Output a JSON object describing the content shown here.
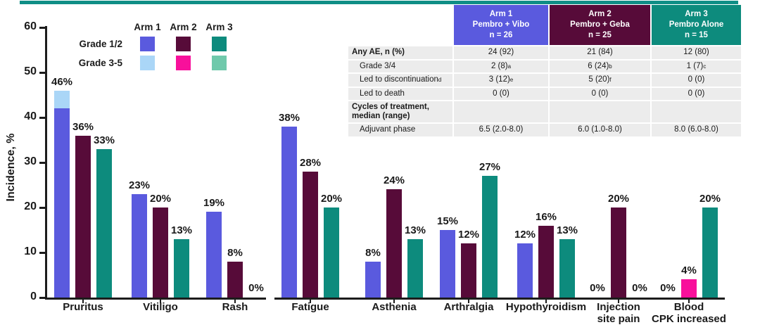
{
  "accent": {
    "strip_color": "#0f8e86"
  },
  "legend": {
    "arm_headers": [
      "Arm 1",
      "Arm 2",
      "Arm 3"
    ],
    "rows": [
      {
        "label": "Grade 1/2",
        "colors": [
          "#5a5ade",
          "#570b39",
          "#0d8b7d"
        ]
      },
      {
        "label": "Grade 3-5",
        "colors": [
          "#aad6f7",
          "#f8109b",
          "#6fc9ab"
        ]
      }
    ]
  },
  "chart_data": {
    "type": "bar",
    "title": "",
    "xlabel": "",
    "ylabel": "Incidence, %",
    "ylim": [
      0,
      60
    ],
    "y_ticks": [
      0,
      10,
      20,
      30,
      40,
      50,
      60
    ],
    "grid": "off",
    "legend_position": "top-left",
    "value_suffix": "%",
    "arm_colors": {
      "1": {
        "grade12": "#5a5ade",
        "grade35": "#aad6f7"
      },
      "2": {
        "grade12": "#570b39",
        "grade35": "#f8109b"
      },
      "3": {
        "grade12": "#0d8b7d",
        "grade35": "#6fc9ab"
      }
    },
    "categories": [
      {
        "label": "Pruritus",
        "bars": [
          {
            "arm": 1,
            "label": "46%",
            "segments": [
              {
                "grade": "grade12",
                "value": 42
              },
              {
                "grade": "grade35",
                "value": 4
              }
            ]
          },
          {
            "arm": 2,
            "label": "36%",
            "segments": [
              {
                "grade": "grade12",
                "value": 36
              }
            ]
          },
          {
            "arm": 3,
            "label": "33%",
            "segments": [
              {
                "grade": "grade12",
                "value": 33
              }
            ]
          }
        ]
      },
      {
        "label": "Vitiligo",
        "bars": [
          {
            "arm": 1,
            "label": "23%",
            "segments": [
              {
                "grade": "grade12",
                "value": 23
              }
            ]
          },
          {
            "arm": 2,
            "label": "20%",
            "segments": [
              {
                "grade": "grade12",
                "value": 20
              }
            ]
          },
          {
            "arm": 3,
            "label": "13%",
            "segments": [
              {
                "grade": "grade12",
                "value": 13
              }
            ]
          }
        ]
      },
      {
        "label": "Rash",
        "bars": [
          {
            "arm": 1,
            "label": "19%",
            "segments": [
              {
                "grade": "grade12",
                "value": 19
              }
            ]
          },
          {
            "arm": 2,
            "label": "8%",
            "segments": [
              {
                "grade": "grade12",
                "value": 8
              }
            ]
          },
          {
            "arm": 3,
            "label": "0%",
            "segments": []
          }
        ]
      },
      {
        "label": "Fatigue",
        "bars": [
          {
            "arm": 1,
            "label": "38%",
            "segments": [
              {
                "grade": "grade12",
                "value": 38
              }
            ]
          },
          {
            "arm": 2,
            "label": "28%",
            "segments": [
              {
                "grade": "grade12",
                "value": 28
              }
            ]
          },
          {
            "arm": 3,
            "label": "20%",
            "segments": [
              {
                "grade": "grade12",
                "value": 20
              }
            ]
          }
        ]
      },
      {
        "label": "Asthenia",
        "bars": [
          {
            "arm": 1,
            "label": "8%",
            "segments": [
              {
                "grade": "grade12",
                "value": 8
              }
            ]
          },
          {
            "arm": 2,
            "label": "24%",
            "segments": [
              {
                "grade": "grade12",
                "value": 24
              }
            ]
          },
          {
            "arm": 3,
            "label": "13%",
            "segments": [
              {
                "grade": "grade12",
                "value": 13
              }
            ]
          }
        ]
      },
      {
        "label": "Arthralgia",
        "bars": [
          {
            "arm": 1,
            "label": "15%",
            "segments": [
              {
                "grade": "grade12",
                "value": 15
              }
            ]
          },
          {
            "arm": 2,
            "label": "12%",
            "segments": [
              {
                "grade": "grade12",
                "value": 12
              }
            ]
          },
          {
            "arm": 3,
            "label": "27%",
            "segments": [
              {
                "grade": "grade12",
                "value": 27
              }
            ]
          }
        ]
      },
      {
        "label": "Hypothyroidism",
        "bars": [
          {
            "arm": 1,
            "label": "12%",
            "segments": [
              {
                "grade": "grade12",
                "value": 12
              }
            ]
          },
          {
            "arm": 2,
            "label": "16%",
            "segments": [
              {
                "grade": "grade12",
                "value": 16
              }
            ]
          },
          {
            "arm": 3,
            "label": "13%",
            "segments": [
              {
                "grade": "grade12",
                "value": 13
              }
            ]
          }
        ]
      },
      {
        "label": "Injection\nsite pain",
        "bars": [
          {
            "arm": 1,
            "label": "0%",
            "segments": []
          },
          {
            "arm": 2,
            "label": "20%",
            "segments": [
              {
                "grade": "grade12",
                "value": 20
              }
            ]
          },
          {
            "arm": 3,
            "label": "0%",
            "segments": []
          }
        ]
      },
      {
        "label": "Blood\nCPK increased",
        "bars": [
          {
            "arm": 1,
            "label": "0%",
            "segments": []
          },
          {
            "arm": 2,
            "label": "4%",
            "segments": [
              {
                "grade": "grade35",
                "value": 4
              }
            ]
          },
          {
            "arm": 3,
            "label": "20%",
            "segments": [
              {
                "grade": "grade12",
                "value": 20
              }
            ]
          }
        ]
      }
    ]
  },
  "table": {
    "header": [
      {
        "lines": [
          "Arm 1",
          "Pembro + Vibo",
          "n = 26"
        ],
        "bg": "#5a5ade"
      },
      {
        "lines": [
          "Arm 2",
          "Pembro + Geba",
          "n = 25"
        ],
        "bg": "#570b39"
      },
      {
        "lines": [
          "Arm 3",
          "Pembro Alone",
          "n = 15"
        ],
        "bg": "#0d8b7d"
      }
    ],
    "rows": [
      {
        "label": "Any AE, n (%)",
        "bold": true,
        "indent": false,
        "height": 18,
        "cells": [
          "24 (92)",
          "21 (84)",
          "12 (80)"
        ]
      },
      {
        "label": "Grade 3/4",
        "bold": false,
        "indent": true,
        "height": 17,
        "cells": [
          "2 (8)^a",
          "6 (24)^b",
          "1 (7)^c"
        ]
      },
      {
        "label": "Led to discontinuation^d",
        "bold": false,
        "indent": true,
        "height": 18,
        "cells": [
          "3 (12)^e",
          "5 (20)^f",
          "0 (0)"
        ]
      },
      {
        "label": "Led to death",
        "bold": false,
        "indent": true,
        "height": 17,
        "cells": [
          "0 (0)",
          "0 (0)",
          "0 (0)"
        ]
      },
      {
        "label": "Cycles of treatment,\nmedian (range)",
        "bold": true,
        "indent": false,
        "height": 30,
        "cells": [
          "",
          "",
          ""
        ]
      },
      {
        "label": "Adjuvant phase",
        "bold": false,
        "indent": true,
        "height": 18,
        "cells": [
          "6.5 (2.0-8.0)",
          "6.0 (1.0-8.0)",
          "8.0 (6.0-8.0)"
        ]
      }
    ]
  }
}
